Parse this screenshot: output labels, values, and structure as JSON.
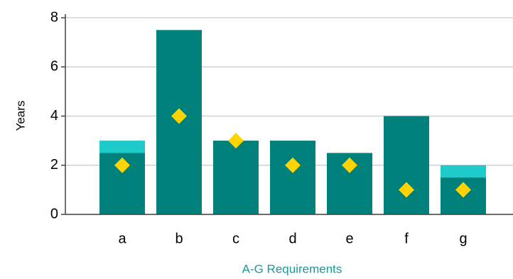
{
  "chart_data": {
    "type": "bar",
    "stacked": true,
    "x_label": "A-G Requirements",
    "y_label": "Years",
    "categories": [
      "a",
      "b",
      "c",
      "d",
      "e",
      "f",
      "g"
    ],
    "series": [
      {
        "type": "bar",
        "color": "#00807a",
        "values": [
          2.5,
          7.5,
          3,
          3,
          2.5,
          4,
          1.5
        ]
      },
      {
        "type": "bar",
        "color": "#1ecaca",
        "values": [
          0.5,
          0,
          0,
          0,
          0,
          0,
          0.5
        ]
      },
      {
        "type": "scatter",
        "marker": "diamond",
        "color": "#ffd400",
        "values": [
          2,
          4,
          3,
          2,
          2,
          1,
          1
        ]
      }
    ],
    "ylim": [
      0,
      8
    ],
    "yticks": [
      0,
      2,
      4,
      6,
      8
    ],
    "grid": true
  }
}
